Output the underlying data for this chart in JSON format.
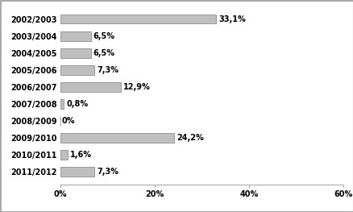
{
  "categories": [
    "2002/2003",
    "2003/2004",
    "2004/2005",
    "2005/2006",
    "2006/2007",
    "2007/2008",
    "2008/2009",
    "2009/2010",
    "2010/2011",
    "2011/2012"
  ],
  "values": [
    33.1,
    6.5,
    6.5,
    7.3,
    12.9,
    0.8,
    0.0,
    24.2,
    1.6,
    7.3
  ],
  "labels": [
    "33,1%",
    "6,5%",
    "6,5%",
    "7,3%",
    "12,9%",
    "0,8%",
    "0%",
    "24,2%",
    "1,6%",
    "7,3%"
  ],
  "bar_color": "#bfbfbf",
  "bar_edgecolor": "#7f7f7f",
  "xlim": [
    0,
    60
  ],
  "xticks": [
    0,
    20,
    40,
    60
  ],
  "xticklabels": [
    "0%",
    "20%",
    "40%",
    "60%"
  ],
  "background_color": "#ffffff",
  "label_fontsize": 7,
  "tick_fontsize": 7,
  "border_color": "#aaaaaa"
}
